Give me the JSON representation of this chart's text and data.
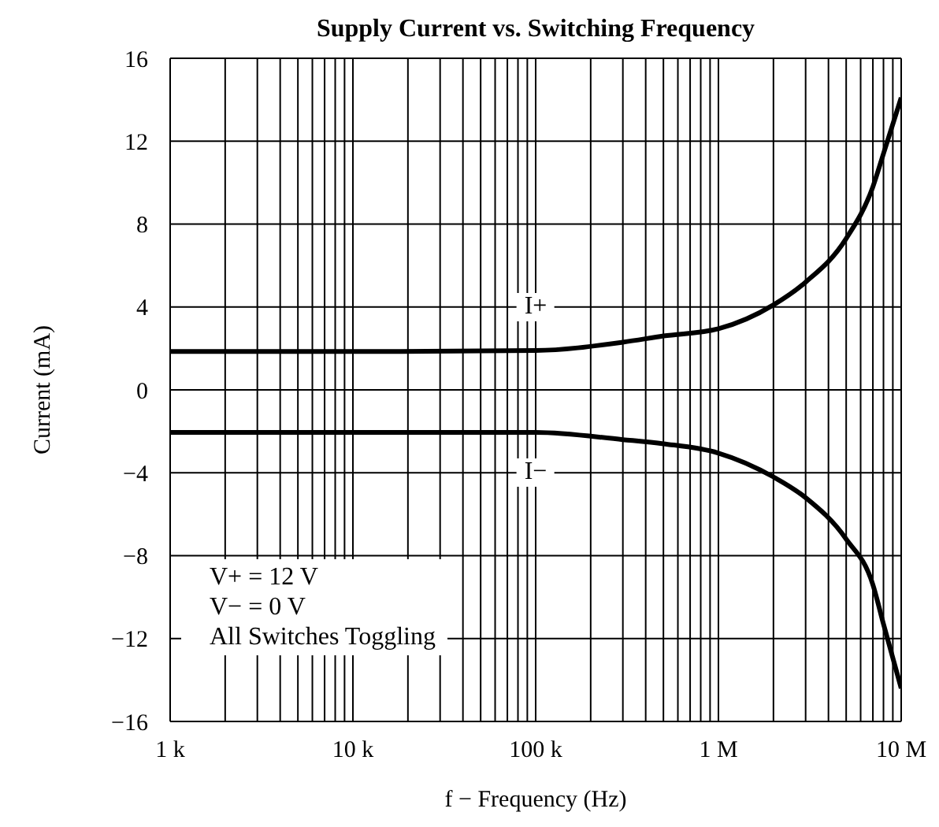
{
  "chart_data": {
    "type": "line",
    "title": "Supply Current vs. Switching Frequency",
    "xlabel": "f − Frequency (Hz)",
    "ylabel": "Current (mA)",
    "log": "x",
    "grid": true,
    "marker": "none",
    "line_style": "solid",
    "xlim": [
      1000,
      10000000
    ],
    "xticks": [
      {
        "value": 1000,
        "label": "1 k"
      },
      {
        "value": 2000,
        "label": null
      },
      {
        "value": 3000,
        "label": null
      },
      {
        "value": 4000,
        "label": null
      },
      {
        "value": 5000,
        "label": null
      },
      {
        "value": 6000,
        "label": null
      },
      {
        "value": 7000,
        "label": null
      },
      {
        "value": 8000,
        "label": null
      },
      {
        "value": 9000,
        "label": null
      },
      {
        "value": 10000,
        "label": "10 k"
      },
      {
        "value": 20000,
        "label": null
      },
      {
        "value": 30000,
        "label": null
      },
      {
        "value": 40000,
        "label": null
      },
      {
        "value": 50000,
        "label": null
      },
      {
        "value": 60000,
        "label": null
      },
      {
        "value": 70000,
        "label": null
      },
      {
        "value": 80000,
        "label": null
      },
      {
        "value": 90000,
        "label": null
      },
      {
        "value": 100000,
        "label": "100 k"
      },
      {
        "value": 200000,
        "label": null
      },
      {
        "value": 300000,
        "label": null
      },
      {
        "value": 400000,
        "label": null
      },
      {
        "value": 500000,
        "label": null
      },
      {
        "value": 600000,
        "label": null
      },
      {
        "value": 700000,
        "label": null
      },
      {
        "value": 800000,
        "label": null
      },
      {
        "value": 900000,
        "label": null
      },
      {
        "value": 1000000,
        "label": "1 M"
      },
      {
        "value": 2000000,
        "label": null
      },
      {
        "value": 3000000,
        "label": null
      },
      {
        "value": 4000000,
        "label": null
      },
      {
        "value": 5000000,
        "label": null
      },
      {
        "value": 6000000,
        "label": null
      },
      {
        "value": 7000000,
        "label": null
      },
      {
        "value": 8000000,
        "label": null
      },
      {
        "value": 9000000,
        "label": null
      },
      {
        "value": 10000000,
        "label": "10 M"
      }
    ],
    "ylim": [
      -16,
      16
    ],
    "yticks": [
      {
        "value": -16,
        "label": "−16"
      },
      {
        "value": -12,
        "label": "−12"
      },
      {
        "value": -8,
        "label": "−8"
      },
      {
        "value": -4,
        "label": "−4"
      },
      0,
      4,
      8,
      12,
      16
    ],
    "x": [
      1000,
      10000,
      100000,
      300000,
      500000,
      1000000,
      2000000,
      3000000,
      5000000,
      7000000,
      8000000,
      10000000
    ],
    "series": [
      {
        "color": "#000000",
        "values": [
          1.85,
          1.85,
          1.9,
          2.3,
          2.6,
          2.95,
          4.1,
          5.2,
          7.3,
          9.8,
          11.4,
          14.1
        ]
      },
      {
        "color": "#000000",
        "values": [
          -2.05,
          -2.05,
          -2.05,
          -2.4,
          -2.6,
          -3.05,
          -4.2,
          -5.2,
          -7.2,
          -9.4,
          -11.3,
          -14.4
        ]
      }
    ],
    "annotations": [
      {
        "text": "I+",
        "x": 100000,
        "y": 4
      },
      {
        "text": "I−",
        "x": 100000,
        "y": -4
      },
      "V+ = 12 V",
      "V− = 0 V",
      "All Switches Toggling"
    ]
  }
}
